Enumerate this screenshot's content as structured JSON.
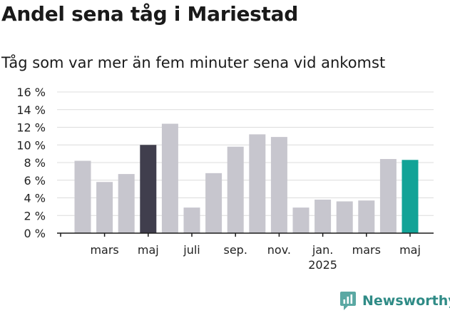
{
  "header": {
    "title": "Andel sena tåg i Mariestad",
    "subtitle": "Tåg som var mer än fem minuter sena vid ankomst"
  },
  "logo": {
    "text": "Newsworthy"
  },
  "colors": {
    "default": "#c7c6ce",
    "highlight_dark": "#403e4d",
    "highlight_accent": "#12a397",
    "grid": "#dcdcdc",
    "axis": "#1a1a1a"
  },
  "chart_data": {
    "type": "bar",
    "title": "Andel sena tåg i Mariestad",
    "subtitle": "Tåg som var mer än fem minuter sena vid ankomst",
    "ylim": [
      0,
      16
    ],
    "yticks": [
      0,
      2,
      4,
      6,
      8,
      10,
      12,
      14,
      16
    ],
    "ytick_labels": [
      "0 %",
      "2 %",
      "4 %",
      "6 %",
      "8 %",
      "10 %",
      "12 %",
      "14 %",
      "16 %"
    ],
    "values": [
      8.2,
      5.8,
      6.7,
      10.0,
      12.4,
      2.9,
      6.8,
      9.8,
      11.2,
      10.9,
      2.9,
      3.8,
      3.6,
      3.7,
      8.4,
      8.3
    ],
    "highlight": {
      "3": "highlight_dark",
      "15": "highlight_accent"
    },
    "x_labels": [
      {
        "index": 1,
        "text": "mars"
      },
      {
        "index": 3,
        "text": "maj"
      },
      {
        "index": 5,
        "text": "juli"
      },
      {
        "index": 7,
        "text": "sep."
      },
      {
        "index": 9,
        "text": "nov."
      },
      {
        "index": 11,
        "text": "jan.",
        "second_line": "2025"
      },
      {
        "index": 13,
        "text": "mars"
      },
      {
        "index": 15,
        "text": "maj"
      }
    ],
    "grid": true
  }
}
